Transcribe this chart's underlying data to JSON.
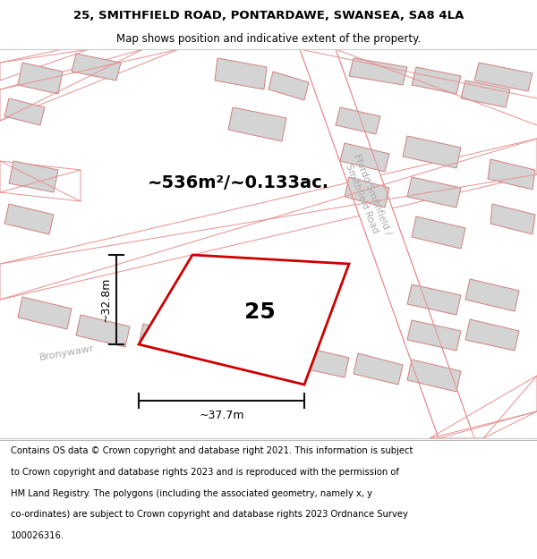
{
  "title_line1": "25, SMITHFIELD ROAD, PONTARDAWE, SWANSEA, SA8 4LA",
  "title_line2": "Map shows position and indicative extent of the property.",
  "area_label": "~536m²/~0.133ac.",
  "house_number": "25",
  "width_label": "~37.7m",
  "height_label": "~32.8m",
  "bg_color": "#f7f4f4",
  "road_fill": "#ffffff",
  "building_fill": "#d4d4d4",
  "building_edge": "#d08080",
  "road_line_color": "#e89090",
  "plot_edge_color": "#cc0000",
  "plot_fill": "#ffffff",
  "dim_color": "#111111",
  "title_fontsize": 9.5,
  "subtitle_fontsize": 8.5,
  "footer_fontsize": 7.2,
  "area_fontsize": 14,
  "house_num_fontsize": 18,
  "dim_fontsize": 9,
  "footer_lines": [
    "Contains OS data © Crown copyright and database right 2021. This information is subject",
    "to Crown copyright and database rights 2023 and is reproduced with the permission of",
    "HM Land Registry. The polygons (including the associated geometry, namely x, y",
    "co-ordinates) are subject to Crown copyright and database rights 2023 Ordnance Survey",
    "100026316."
  ]
}
